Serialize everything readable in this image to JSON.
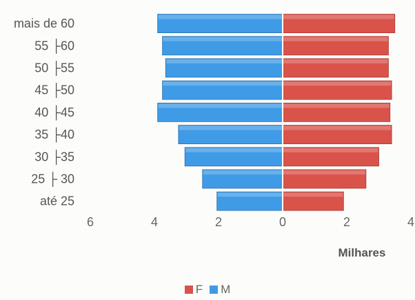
{
  "chart_data": {
    "type": "bar",
    "orientation": "horizontal",
    "subtype": "population-pyramid",
    "categories": [
      "mais de 60",
      "55 ├60",
      "50 ├55",
      "45 ├50",
      "40 ├45",
      "35 ├40",
      "30 ├35",
      "25 ├ 30",
      "até 25"
    ],
    "series": [
      {
        "name": "F",
        "color": "#d9534a",
        "values": [
          3.5,
          3.3,
          3.3,
          3.4,
          3.35,
          3.4,
          3.0,
          2.6,
          1.9
        ]
      },
      {
        "name": "M",
        "color": "#3f9be6",
        "values": [
          3.9,
          3.75,
          3.65,
          3.75,
          3.9,
          3.25,
          3.05,
          2.5,
          2.05
        ]
      }
    ],
    "xlabel": "Milhares",
    "xlim": [
      -6,
      4
    ],
    "x_ticks": [
      -6,
      -4,
      -2,
      0,
      2,
      4
    ],
    "x_tick_labels": [
      "6",
      "4",
      "2",
      "0",
      "2",
      "4"
    ],
    "legend_position": "bottom",
    "grid": false
  }
}
